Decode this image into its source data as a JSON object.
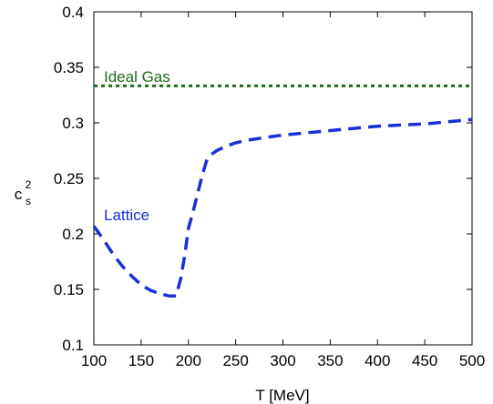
{
  "chart_data": {
    "type": "line",
    "xlabel": "T [MeV]",
    "ylabel": "c",
    "ylabel_sub": "s",
    "ylabel_sup": "2",
    "xlim": [
      100,
      500
    ],
    "ylim": [
      0.1,
      0.4
    ],
    "x_ticks": [
      100,
      150,
      200,
      250,
      300,
      350,
      400,
      450,
      500
    ],
    "y_ticks": [
      0.1,
      0.15,
      0.2,
      0.25,
      0.3,
      0.35,
      0.4
    ],
    "x_tick_labels": [
      "100",
      "150",
      "200",
      "250",
      "300",
      "350",
      "400",
      "450",
      "500"
    ],
    "y_tick_labels": [
      "0.1",
      "0.15",
      "0.2",
      "0.25",
      "0.3",
      "0.35",
      "0.4"
    ],
    "grid": false,
    "series": [
      {
        "name": "Ideal Gas",
        "color": "#1a6b1a",
        "style": "dotted",
        "x": [
          100,
          500
        ],
        "y": [
          0.3333,
          0.3333
        ]
      },
      {
        "name": "Lattice",
        "color": "#1a2fd6",
        "style": "dashed",
        "x": [
          100,
          110,
          120,
          130,
          140,
          150,
          160,
          170,
          180,
          187,
          192,
          196,
          200,
          205,
          210,
          215,
          220,
          225,
          230,
          240,
          250,
          260,
          275,
          300,
          325,
          350,
          375,
          400,
          425,
          450,
          475,
          500
        ],
        "y": [
          0.207,
          0.195,
          0.182,
          0.171,
          0.162,
          0.154,
          0.149,
          0.146,
          0.144,
          0.144,
          0.16,
          0.18,
          0.205,
          0.22,
          0.237,
          0.254,
          0.268,
          0.272,
          0.275,
          0.279,
          0.282,
          0.284,
          0.286,
          0.289,
          0.291,
          0.293,
          0.295,
          0.297,
          0.298,
          0.299,
          0.301,
          0.303
        ]
      }
    ]
  }
}
